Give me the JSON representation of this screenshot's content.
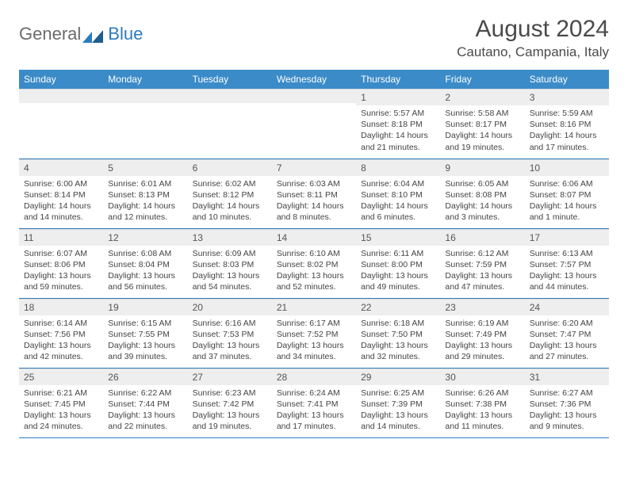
{
  "logo": {
    "text_general": "General",
    "text_blue": "Blue"
  },
  "title": {
    "month": "August 2024",
    "location": "Cautano, Campania, Italy"
  },
  "colors": {
    "header_bg": "#3b8bc8",
    "header_text": "#ffffff",
    "daynum_bg": "#eeeeee",
    "border": "#2c7bbf",
    "text": "#444444"
  },
  "weekdays": [
    "Sunday",
    "Monday",
    "Tuesday",
    "Wednesday",
    "Thursday",
    "Friday",
    "Saturday"
  ],
  "weeks": [
    [
      {
        "num": "",
        "lines": [
          "",
          "",
          "",
          ""
        ]
      },
      {
        "num": "",
        "lines": [
          "",
          "",
          "",
          ""
        ]
      },
      {
        "num": "",
        "lines": [
          "",
          "",
          "",
          ""
        ]
      },
      {
        "num": "",
        "lines": [
          "",
          "",
          "",
          ""
        ]
      },
      {
        "num": "1",
        "lines": [
          "Sunrise: 5:57 AM",
          "Sunset: 8:18 PM",
          "Daylight: 14 hours",
          "and 21 minutes."
        ]
      },
      {
        "num": "2",
        "lines": [
          "Sunrise: 5:58 AM",
          "Sunset: 8:17 PM",
          "Daylight: 14 hours",
          "and 19 minutes."
        ]
      },
      {
        "num": "3",
        "lines": [
          "Sunrise: 5:59 AM",
          "Sunset: 8:16 PM",
          "Daylight: 14 hours",
          "and 17 minutes."
        ]
      }
    ],
    [
      {
        "num": "4",
        "lines": [
          "Sunrise: 6:00 AM",
          "Sunset: 8:14 PM",
          "Daylight: 14 hours",
          "and 14 minutes."
        ]
      },
      {
        "num": "5",
        "lines": [
          "Sunrise: 6:01 AM",
          "Sunset: 8:13 PM",
          "Daylight: 14 hours",
          "and 12 minutes."
        ]
      },
      {
        "num": "6",
        "lines": [
          "Sunrise: 6:02 AM",
          "Sunset: 8:12 PM",
          "Daylight: 14 hours",
          "and 10 minutes."
        ]
      },
      {
        "num": "7",
        "lines": [
          "Sunrise: 6:03 AM",
          "Sunset: 8:11 PM",
          "Daylight: 14 hours",
          "and 8 minutes."
        ]
      },
      {
        "num": "8",
        "lines": [
          "Sunrise: 6:04 AM",
          "Sunset: 8:10 PM",
          "Daylight: 14 hours",
          "and 6 minutes."
        ]
      },
      {
        "num": "9",
        "lines": [
          "Sunrise: 6:05 AM",
          "Sunset: 8:08 PM",
          "Daylight: 14 hours",
          "and 3 minutes."
        ]
      },
      {
        "num": "10",
        "lines": [
          "Sunrise: 6:06 AM",
          "Sunset: 8:07 PM",
          "Daylight: 14 hours",
          "and 1 minute."
        ]
      }
    ],
    [
      {
        "num": "11",
        "lines": [
          "Sunrise: 6:07 AM",
          "Sunset: 8:06 PM",
          "Daylight: 13 hours",
          "and 59 minutes."
        ]
      },
      {
        "num": "12",
        "lines": [
          "Sunrise: 6:08 AM",
          "Sunset: 8:04 PM",
          "Daylight: 13 hours",
          "and 56 minutes."
        ]
      },
      {
        "num": "13",
        "lines": [
          "Sunrise: 6:09 AM",
          "Sunset: 8:03 PM",
          "Daylight: 13 hours",
          "and 54 minutes."
        ]
      },
      {
        "num": "14",
        "lines": [
          "Sunrise: 6:10 AM",
          "Sunset: 8:02 PM",
          "Daylight: 13 hours",
          "and 52 minutes."
        ]
      },
      {
        "num": "15",
        "lines": [
          "Sunrise: 6:11 AM",
          "Sunset: 8:00 PM",
          "Daylight: 13 hours",
          "and 49 minutes."
        ]
      },
      {
        "num": "16",
        "lines": [
          "Sunrise: 6:12 AM",
          "Sunset: 7:59 PM",
          "Daylight: 13 hours",
          "and 47 minutes."
        ]
      },
      {
        "num": "17",
        "lines": [
          "Sunrise: 6:13 AM",
          "Sunset: 7:57 PM",
          "Daylight: 13 hours",
          "and 44 minutes."
        ]
      }
    ],
    [
      {
        "num": "18",
        "lines": [
          "Sunrise: 6:14 AM",
          "Sunset: 7:56 PM",
          "Daylight: 13 hours",
          "and 42 minutes."
        ]
      },
      {
        "num": "19",
        "lines": [
          "Sunrise: 6:15 AM",
          "Sunset: 7:55 PM",
          "Daylight: 13 hours",
          "and 39 minutes."
        ]
      },
      {
        "num": "20",
        "lines": [
          "Sunrise: 6:16 AM",
          "Sunset: 7:53 PM",
          "Daylight: 13 hours",
          "and 37 minutes."
        ]
      },
      {
        "num": "21",
        "lines": [
          "Sunrise: 6:17 AM",
          "Sunset: 7:52 PM",
          "Daylight: 13 hours",
          "and 34 minutes."
        ]
      },
      {
        "num": "22",
        "lines": [
          "Sunrise: 6:18 AM",
          "Sunset: 7:50 PM",
          "Daylight: 13 hours",
          "and 32 minutes."
        ]
      },
      {
        "num": "23",
        "lines": [
          "Sunrise: 6:19 AM",
          "Sunset: 7:49 PM",
          "Daylight: 13 hours",
          "and 29 minutes."
        ]
      },
      {
        "num": "24",
        "lines": [
          "Sunrise: 6:20 AM",
          "Sunset: 7:47 PM",
          "Daylight: 13 hours",
          "and 27 minutes."
        ]
      }
    ],
    [
      {
        "num": "25",
        "lines": [
          "Sunrise: 6:21 AM",
          "Sunset: 7:45 PM",
          "Daylight: 13 hours",
          "and 24 minutes."
        ]
      },
      {
        "num": "26",
        "lines": [
          "Sunrise: 6:22 AM",
          "Sunset: 7:44 PM",
          "Daylight: 13 hours",
          "and 22 minutes."
        ]
      },
      {
        "num": "27",
        "lines": [
          "Sunrise: 6:23 AM",
          "Sunset: 7:42 PM",
          "Daylight: 13 hours",
          "and 19 minutes."
        ]
      },
      {
        "num": "28",
        "lines": [
          "Sunrise: 6:24 AM",
          "Sunset: 7:41 PM",
          "Daylight: 13 hours",
          "and 17 minutes."
        ]
      },
      {
        "num": "29",
        "lines": [
          "Sunrise: 6:25 AM",
          "Sunset: 7:39 PM",
          "Daylight: 13 hours",
          "and 14 minutes."
        ]
      },
      {
        "num": "30",
        "lines": [
          "Sunrise: 6:26 AM",
          "Sunset: 7:38 PM",
          "Daylight: 13 hours",
          "and 11 minutes."
        ]
      },
      {
        "num": "31",
        "lines": [
          "Sunrise: 6:27 AM",
          "Sunset: 7:36 PM",
          "Daylight: 13 hours",
          "and 9 minutes."
        ]
      }
    ]
  ]
}
